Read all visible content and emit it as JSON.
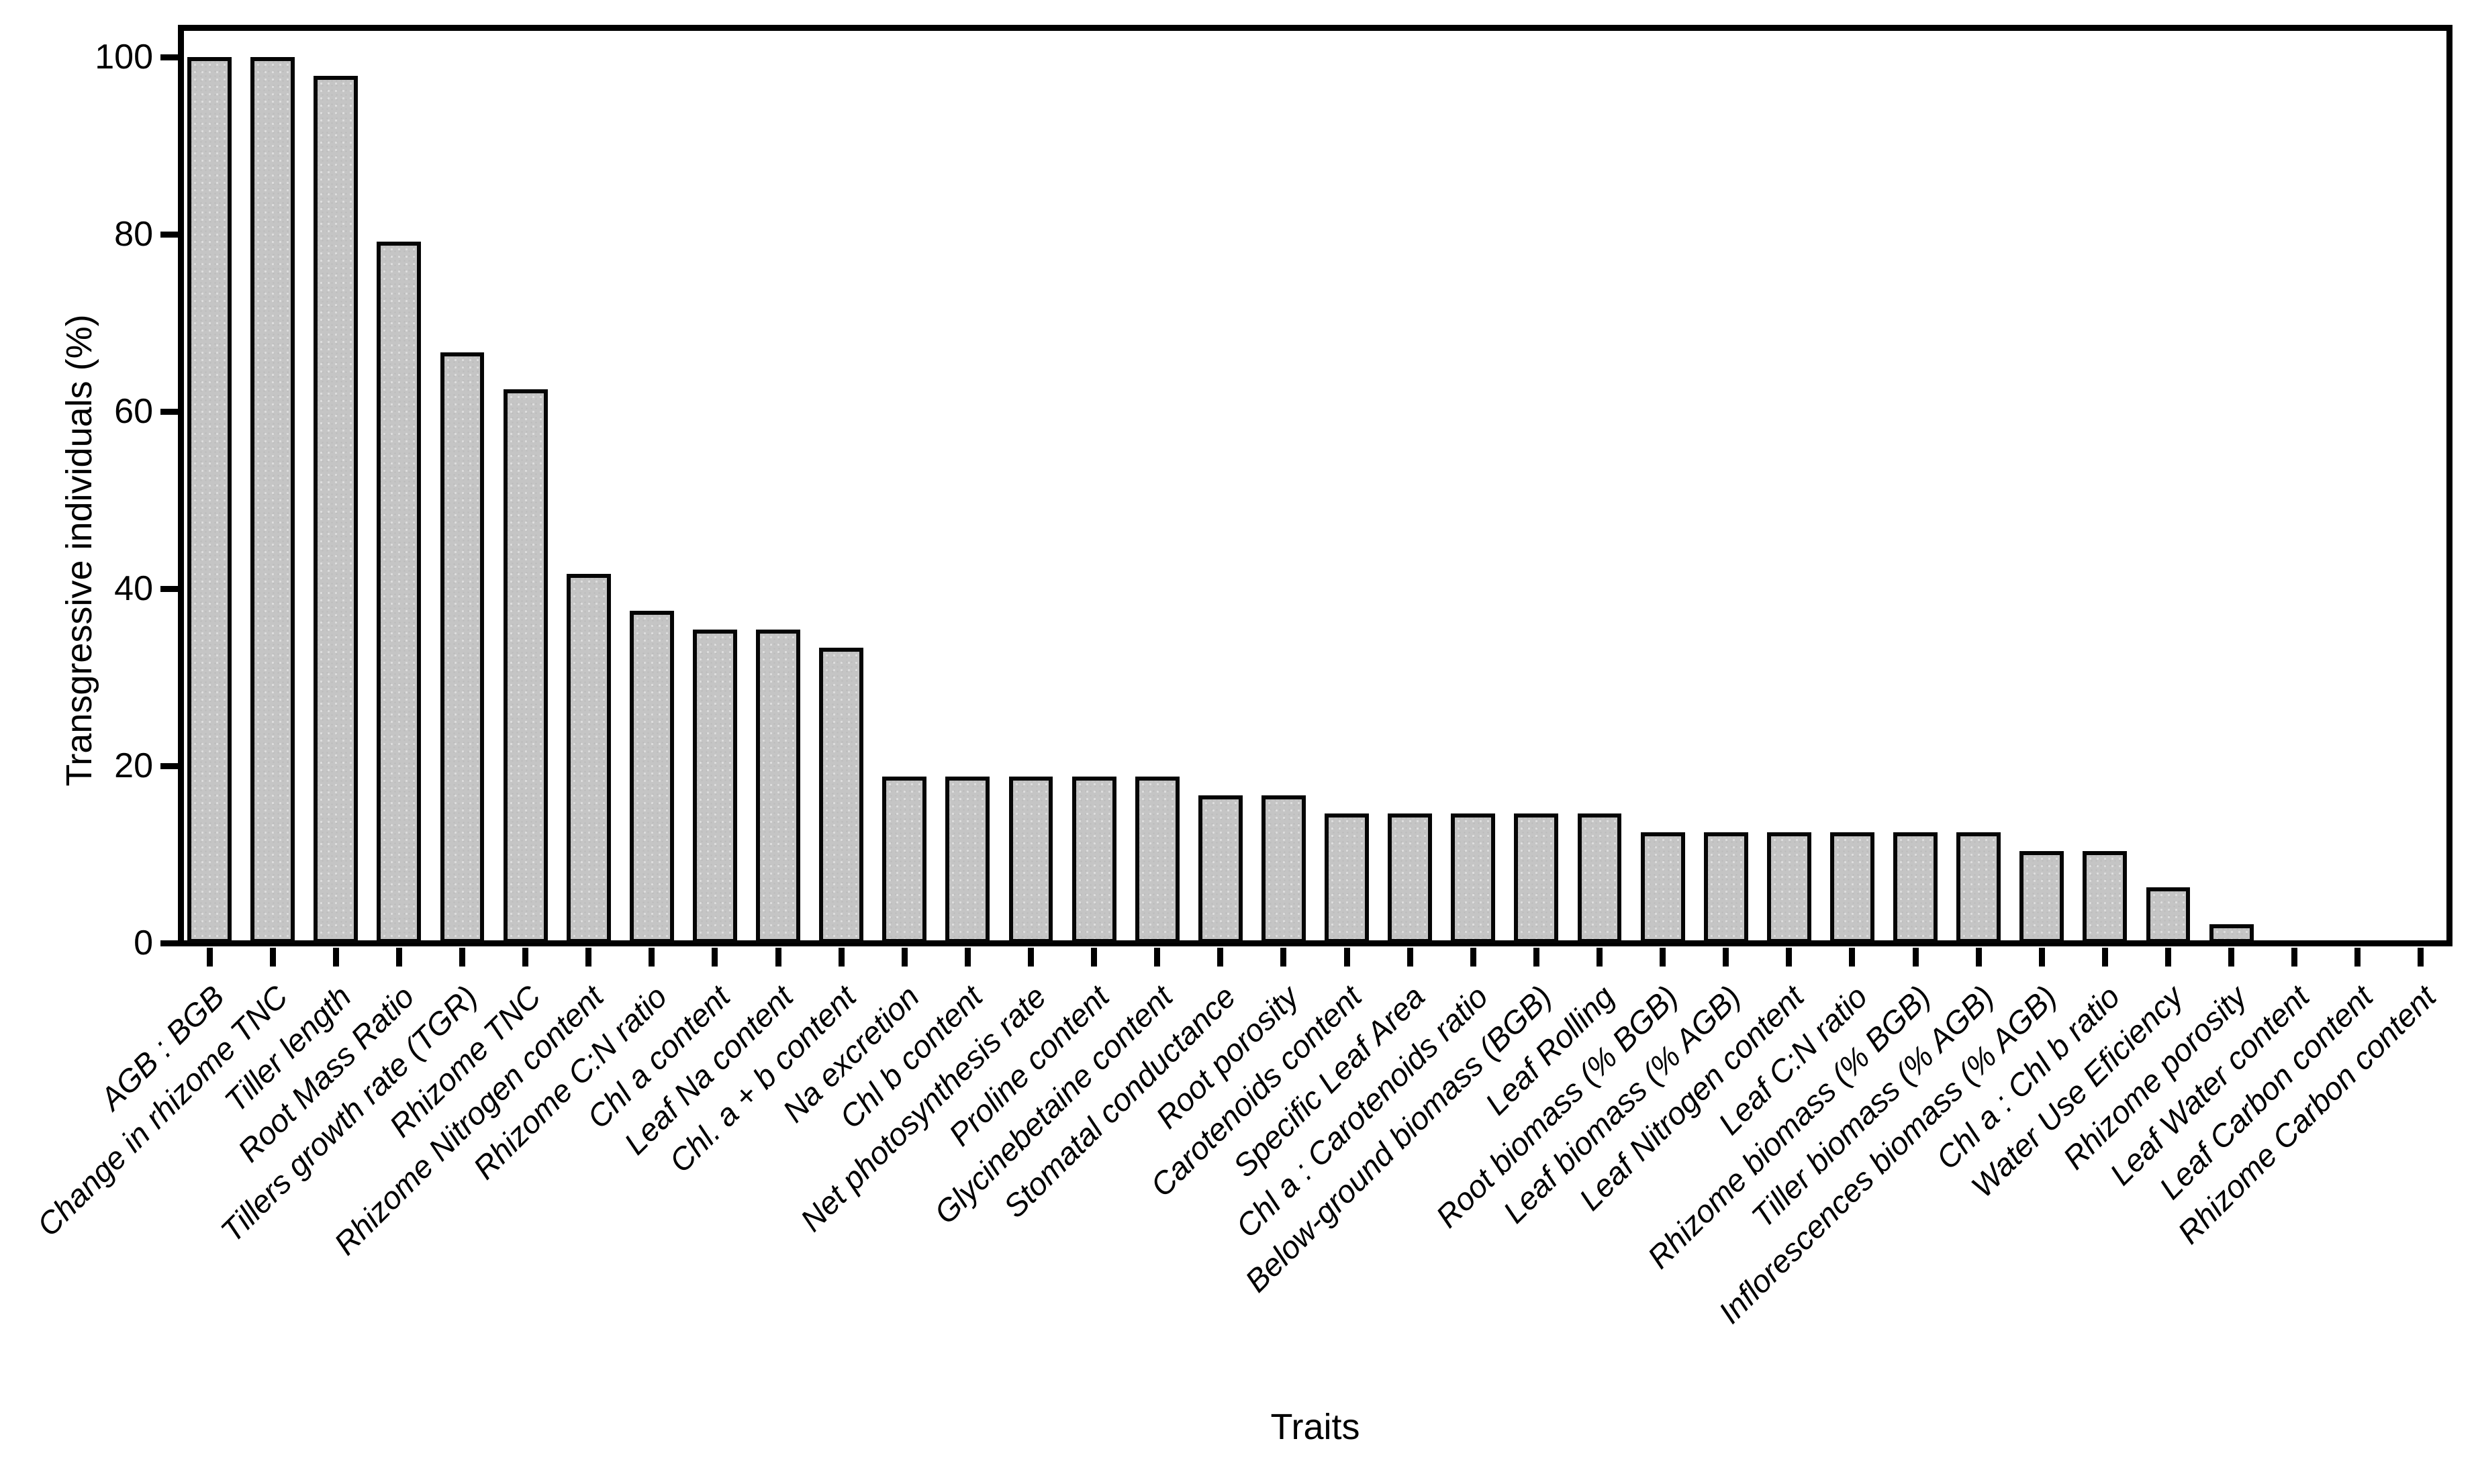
{
  "figure": {
    "background": "#ffffff",
    "bar_fill": "#c5c5c5",
    "bar_border": "#050505",
    "axis_color": "#000000"
  },
  "chart_data": {
    "type": "bar",
    "title": "",
    "xlabel": "Traits",
    "ylabel": "Transgressive individuals (%)",
    "ylim": [
      0,
      100
    ],
    "yticks": [
      0,
      20,
      40,
      60,
      80,
      100
    ],
    "grid": false,
    "legend": "none",
    "bar_color": "#c5c5c5",
    "categories": [
      "AGB : BGB",
      "Change in rhizome TNC",
      "Tiller length",
      "Root Mass Ratio",
      "Tillers growth rate (TGR)",
      "Rhizome TNC",
      "Rhizome Nitrogen content",
      "Rhizome C:N ratio",
      "Chl a content",
      "Leaf Na content",
      "Chl. a + b content",
      "Na excretion",
      "Chl b content",
      "Net photosynthesis rate",
      "Proline content",
      "Glycinebetaine content",
      "Stomatal conductance",
      "Root porosity",
      "Carotenoids content",
      "Specific Leaf Area",
      "Chl a : Carotenoids ratio",
      "Below-ground biomass (BGB)",
      "Leaf Rolling",
      "Root biomass (% BGB)",
      "Leaf biomass (% AGB)",
      "Leaf Nitrogen content",
      "Leaf C:N ratio",
      "Rhizome biomass (% BGB)",
      "Tiller biomass (% AGB)",
      "Inflorescences biomass (% AGB)",
      "Chl a : Chl b ratio",
      "Water Use Eficiency",
      "Rhizome porosity",
      "Leaf Water content",
      "Leaf Carbon content",
      "Rhizome Carbon content"
    ],
    "values": [
      100,
      100,
      97.9,
      79.2,
      66.7,
      62.5,
      41.7,
      37.5,
      35.4,
      35.4,
      33.3,
      18.8,
      18.8,
      18.8,
      18.8,
      18.8,
      16.7,
      16.7,
      14.6,
      14.6,
      14.6,
      14.6,
      14.6,
      12.5,
      12.5,
      12.5,
      12.5,
      12.5,
      12.5,
      10.4,
      10.4,
      6.3,
      2.1,
      0,
      0,
      0
    ]
  }
}
